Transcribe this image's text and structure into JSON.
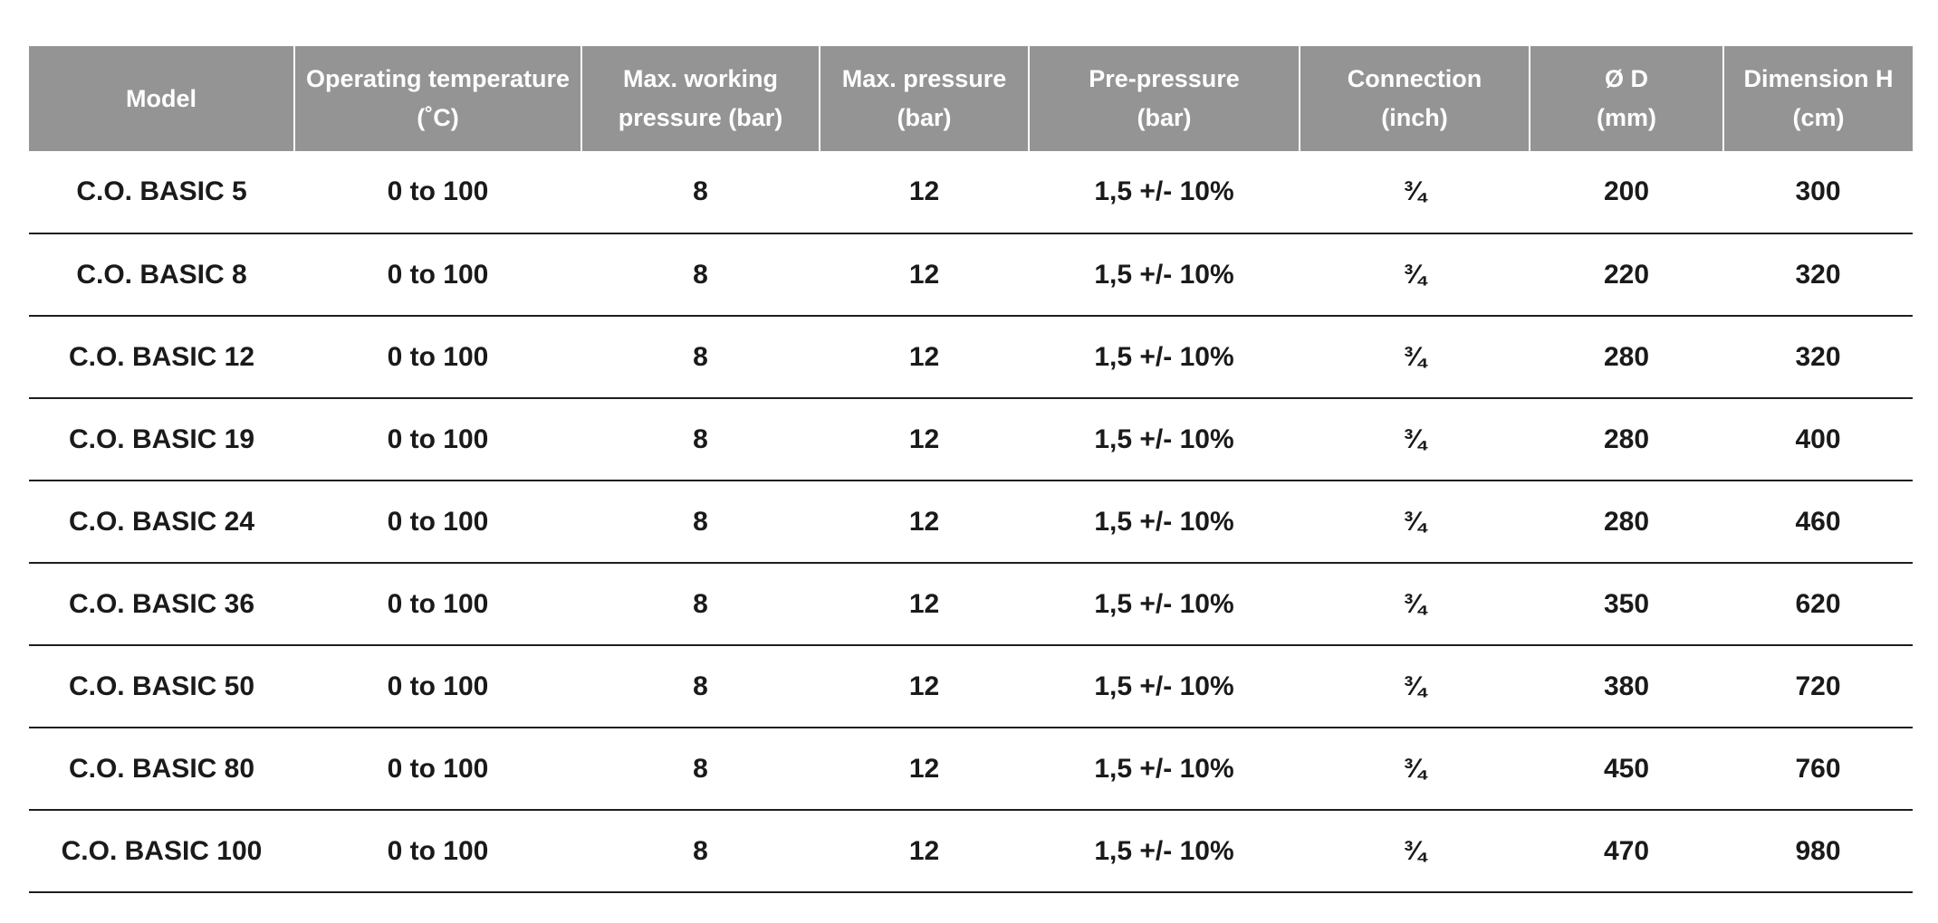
{
  "table": {
    "headers": [
      {
        "lines": [
          "Model"
        ]
      },
      {
        "lines": [
          "Operating temperature",
          "(˚C)"
        ]
      },
      {
        "lines": [
          "Max. working",
          "pressure (bar)"
        ]
      },
      {
        "lines": [
          "Max. pressure",
          "(bar)"
        ]
      },
      {
        "lines": [
          "Pre-pressure",
          "(bar)"
        ]
      },
      {
        "lines": [
          "Connection",
          "(inch)"
        ]
      },
      {
        "lines": [
          "Ø D",
          "(mm)"
        ]
      },
      {
        "lines": [
          "Dimension H",
          "(cm)"
        ]
      }
    ],
    "rows": [
      [
        "C.O. BASIC 5",
        "0 to 100",
        "8",
        "12",
        "1,5 +/- 10%",
        "¾",
        "200",
        "300"
      ],
      [
        "C.O. BASIC 8",
        "0 to 100",
        "8",
        "12",
        "1,5 +/- 10%",
        "¾",
        "220",
        "320"
      ],
      [
        "C.O. BASIC 12",
        "0 to 100",
        "8",
        "12",
        "1,5 +/- 10%",
        "¾",
        "280",
        "320"
      ],
      [
        "C.O. BASIC 19",
        "0 to 100",
        "8",
        "12",
        "1,5 +/- 10%",
        "¾",
        "280",
        "400"
      ],
      [
        "C.O. BASIC 24",
        "0 to 100",
        "8",
        "12",
        "1,5 +/- 10%",
        "¾",
        "280",
        "460"
      ],
      [
        "C.O. BASIC 36",
        "0 to 100",
        "8",
        "12",
        "1,5 +/- 10%",
        "¾",
        "350",
        "620"
      ],
      [
        "C.O. BASIC 50",
        "0 to 100",
        "8",
        "12",
        "1,5 +/- 10%",
        "¾",
        "380",
        "720"
      ],
      [
        "C.O. BASIC 80",
        "0 to 100",
        "8",
        "12",
        "1,5 +/- 10%",
        "¾",
        "450",
        "760"
      ],
      [
        "C.O. BASIC 100",
        "0 to 100",
        "8",
        "12",
        "1,5 +/- 10%",
        "¾",
        "470",
        "980"
      ]
    ]
  },
  "colors": {
    "header_background": "#949494",
    "header_text": "#ffffff",
    "body_text": "#1a1a1a",
    "row_rule": "#1e1e1e"
  }
}
